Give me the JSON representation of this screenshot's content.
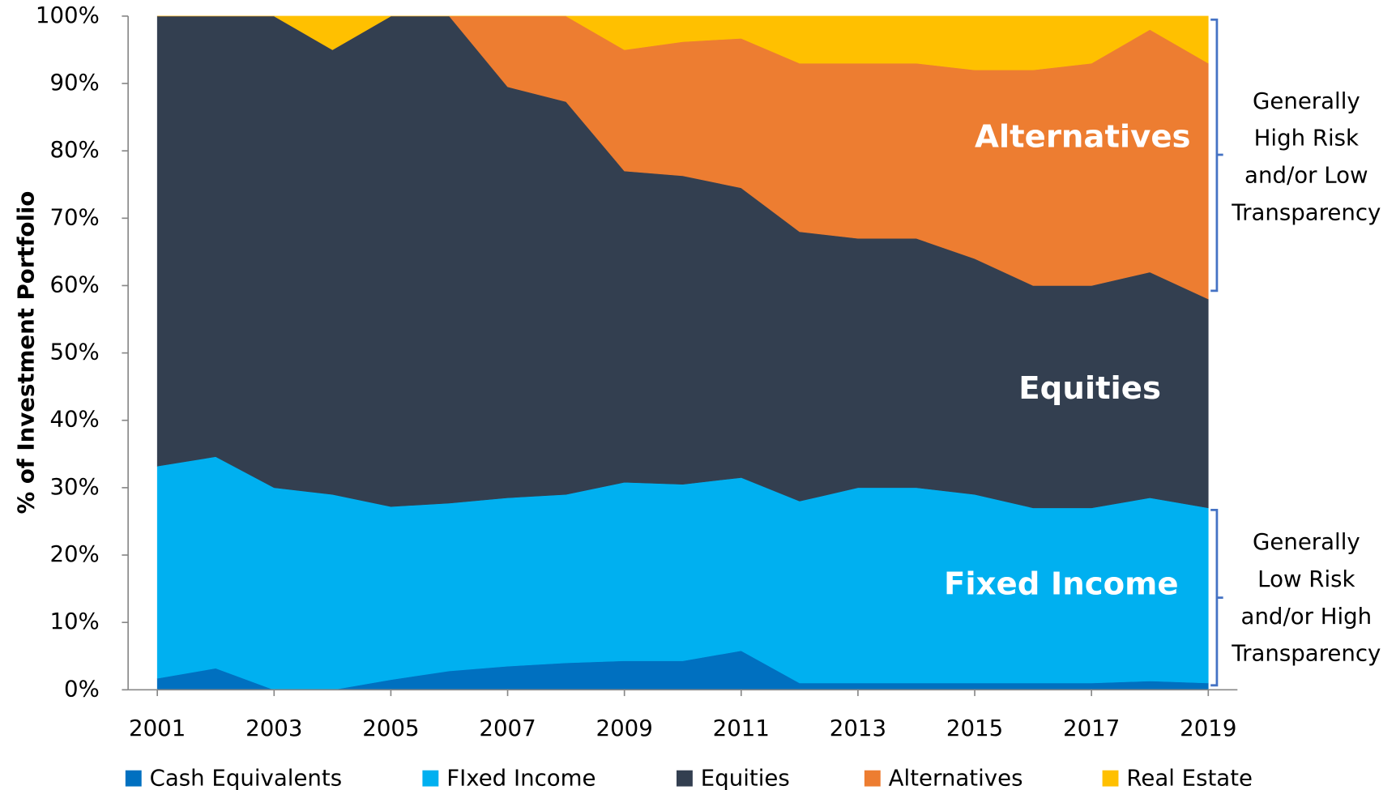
{
  "chart_data": {
    "type": "stacked-area",
    "y_axis_label": "% of Investment Portfolio",
    "x": [
      2001,
      2002,
      2003,
      2004,
      2005,
      2006,
      2007,
      2008,
      2009,
      2010,
      2011,
      2012,
      2013,
      2014,
      2015,
      2016,
      2017,
      2018,
      2019
    ],
    "xlim": [
      2000.5,
      2019.5
    ],
    "xticks": [
      2001,
      2003,
      2005,
      2007,
      2009,
      2011,
      2013,
      2015,
      2017,
      2019
    ],
    "ylim": [
      0,
      100
    ],
    "yticks": [
      {
        "value": 0,
        "label": "0%"
      },
      {
        "value": 10,
        "label": "10%"
      },
      {
        "value": 20,
        "label": "20%"
      },
      {
        "value": 30,
        "label": "30%"
      },
      {
        "value": 40,
        "label": "40%"
      },
      {
        "value": 50,
        "label": "50%"
      },
      {
        "value": 60,
        "label": "60%"
      },
      {
        "value": 70,
        "label": "70%"
      },
      {
        "value": 80,
        "label": "80%"
      },
      {
        "value": 90,
        "label": "90%"
      },
      {
        "value": 100,
        "label": "100%"
      }
    ],
    "grid": false,
    "legend": "bottom",
    "series": [
      {
        "name": "Cash Equivalents",
        "color": "#0070c0",
        "values": [
          1.7,
          3.2,
          0,
          0,
          1.5,
          2.8,
          3.5,
          4,
          4.3,
          4.3,
          5.8,
          1,
          1,
          1,
          1,
          1,
          1,
          1.3,
          1
        ]
      },
      {
        "name": "FIxed Income",
        "color": "#00b0f0",
        "values": [
          31.5,
          31.4,
          30,
          29,
          25.7,
          24.9,
          25,
          25,
          26.5,
          26.2,
          25.7,
          27,
          29,
          29,
          28,
          26,
          26,
          27.2,
          26
        ]
      },
      {
        "name": "Equities",
        "color": "#333f50",
        "values": [
          66.8,
          65.4,
          70,
          66,
          72.8,
          72.3,
          61,
          58.3,
          46.2,
          45.8,
          43,
          40,
          37,
          37,
          35,
          33,
          33,
          33.5,
          31
        ]
      },
      {
        "name": "Alternatives",
        "color": "#ed7d31",
        "values": [
          0,
          0,
          0,
          0,
          0,
          0,
          10.5,
          12.7,
          18,
          19.9,
          22.2,
          25,
          26,
          26,
          28,
          32,
          33,
          36,
          35
        ]
      },
      {
        "name": "Real Estate",
        "color": "#ffc000",
        "values": [
          0,
          0,
          0,
          5,
          0,
          0,
          0,
          0,
          5,
          3.8,
          3.3,
          7,
          7,
          7,
          8,
          8,
          7,
          2,
          7
        ]
      }
    ],
    "area_labels": [
      "Alternatives",
      "Equities",
      "Fixed Income"
    ],
    "bracket_notes": [
      [
        "Generally",
        "High Risk",
        "and/or Low",
        "Transparency"
      ],
      [
        "Generally",
        "Low Risk",
        "and/or High",
        "Transparency"
      ]
    ]
  }
}
